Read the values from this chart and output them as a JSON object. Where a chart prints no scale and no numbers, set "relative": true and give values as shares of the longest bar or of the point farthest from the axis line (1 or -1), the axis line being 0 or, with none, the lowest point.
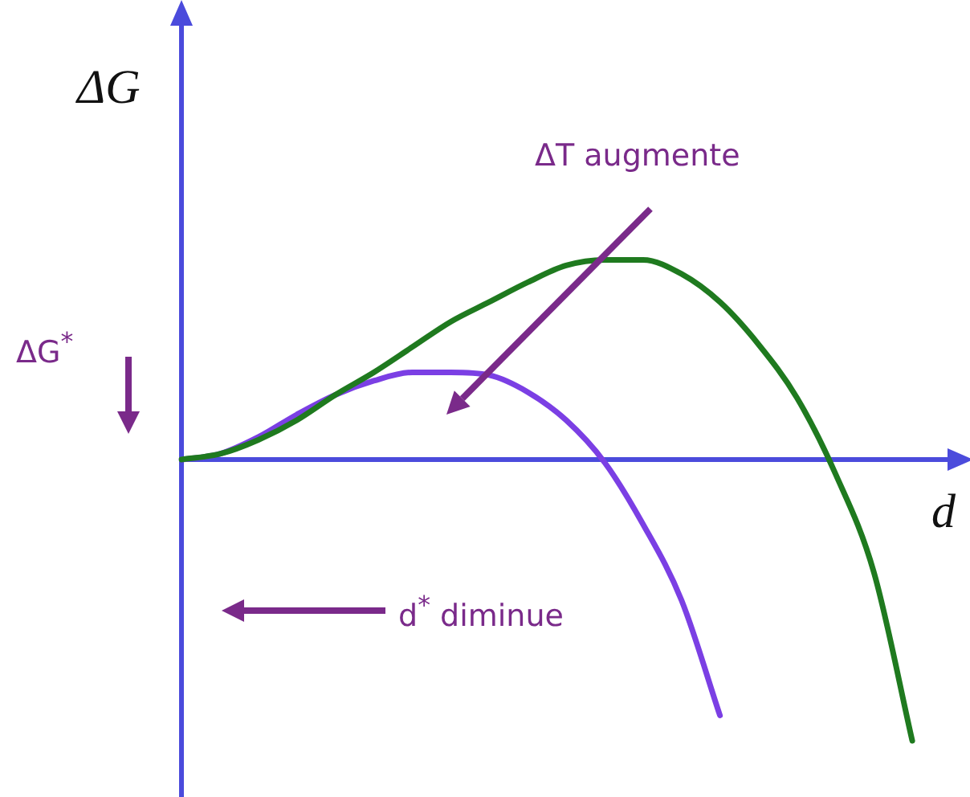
{
  "chart_data": {
    "type": "line",
    "xlabel": "d",
    "ylabel": "ΔG",
    "relative": true,
    "categories": [
      null,
      null,
      null,
      null,
      null,
      null,
      null,
      null,
      null,
      null,
      null,
      null,
      null,
      null,
      null,
      null,
      null,
      null,
      null,
      null,
      null
    ],
    "series": [
      {
        "color": "#1f7a1f",
        "values": [
          0,
          0.02,
          0.07,
          0.14,
          0.23,
          0.31,
          0.4,
          0.49,
          0.56,
          0.63,
          0.69,
          0.71,
          0.71,
          0.66,
          0.56,
          0.41,
          0.22,
          -0.05,
          -0.4,
          -1,
          null
        ]
      },
      {
        "color": "#7b3fe4",
        "values": [
          0,
          0.02,
          0.08,
          0.16,
          0.23,
          0.28,
          0.31,
          0.31,
          0.3,
          0.24,
          0.14,
          -0.01,
          -0.23,
          -0.5,
          -0.91,
          null,
          null,
          null,
          null,
          null,
          null
        ]
      }
    ],
    "ref_lines": [
      {
        "axis": "y",
        "value": 0,
        "color": "#4b4bdc"
      }
    ],
    "annotations": [
      "ΔT augmente",
      "ΔG$^{*}$",
      "d$^{*}$ diminue"
    ]
  }
}
